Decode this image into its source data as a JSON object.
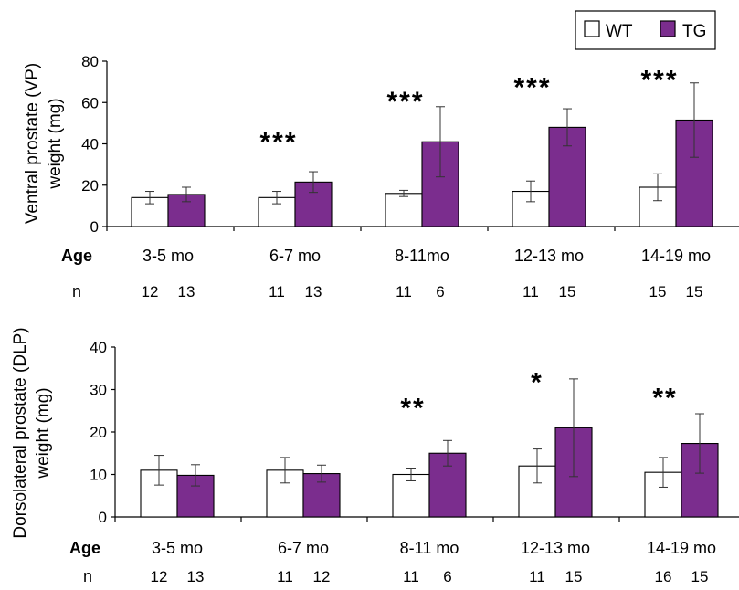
{
  "legend": [
    {
      "name": "WT",
      "color": "#ffffff"
    },
    {
      "name": "TG",
      "color": "#7b2d8e"
    }
  ],
  "colors": {
    "wt": "#ffffff",
    "tg": "#7b2d8e",
    "axis": "#000000"
  },
  "chart_data": [
    {
      "type": "bar",
      "ylabel_line1": "Ventral prostate (VP)",
      "ylabel_line2": "weight (mg)",
      "ylim": [
        0,
        80
      ],
      "yticks": [
        "0",
        "20",
        "40",
        "60",
        "80"
      ],
      "row_age_label": "Age",
      "row_n_label": "n",
      "categories": [
        "3-5 mo",
        "6-7 mo",
        "8-11mo",
        "12-13 mo",
        "14-19 mo"
      ],
      "series": [
        {
          "name": "WT",
          "values": [
            14,
            14,
            16,
            17,
            19
          ],
          "errors": [
            3,
            3,
            1.5,
            5,
            6.5
          ],
          "n": [
            "12",
            "11",
            "11",
            "11",
            "15"
          ]
        },
        {
          "name": "TG",
          "values": [
            15.5,
            21.5,
            41,
            48,
            51.5
          ],
          "errors": [
            3.5,
            5,
            17,
            9,
            18
          ],
          "n": [
            "13",
            "13",
            "6",
            "15",
            "15"
          ]
        }
      ],
      "significance": [
        "",
        "***",
        "***",
        "***",
        "***"
      ]
    },
    {
      "type": "bar",
      "ylabel_line1": "Dorsolateral prostate (DLP)",
      "ylabel_line2": "weight (mg)",
      "ylim": [
        0,
        40
      ],
      "yticks": [
        "0",
        "10",
        "20",
        "30",
        "40"
      ],
      "row_age_label": "Age",
      "row_n_label": "n",
      "categories": [
        "3-5 mo",
        "6-7 mo",
        "8-11 mo",
        "12-13 mo",
        "14-19 mo"
      ],
      "series": [
        {
          "name": "WT",
          "values": [
            11,
            11,
            10,
            12,
            10.5
          ],
          "errors": [
            3.5,
            3,
            1.5,
            4,
            3.5
          ],
          "n": [
            "12",
            "11",
            "11",
            "11",
            "16"
          ]
        },
        {
          "name": "TG",
          "values": [
            9.8,
            10.2,
            15,
            21,
            17.3
          ],
          "errors": [
            2.5,
            2,
            3,
            11.5,
            7
          ],
          "n": [
            "13",
            "12",
            "6",
            "15",
            "15"
          ]
        }
      ],
      "significance": [
        "",
        "",
        "**",
        "*",
        "**"
      ]
    }
  ]
}
